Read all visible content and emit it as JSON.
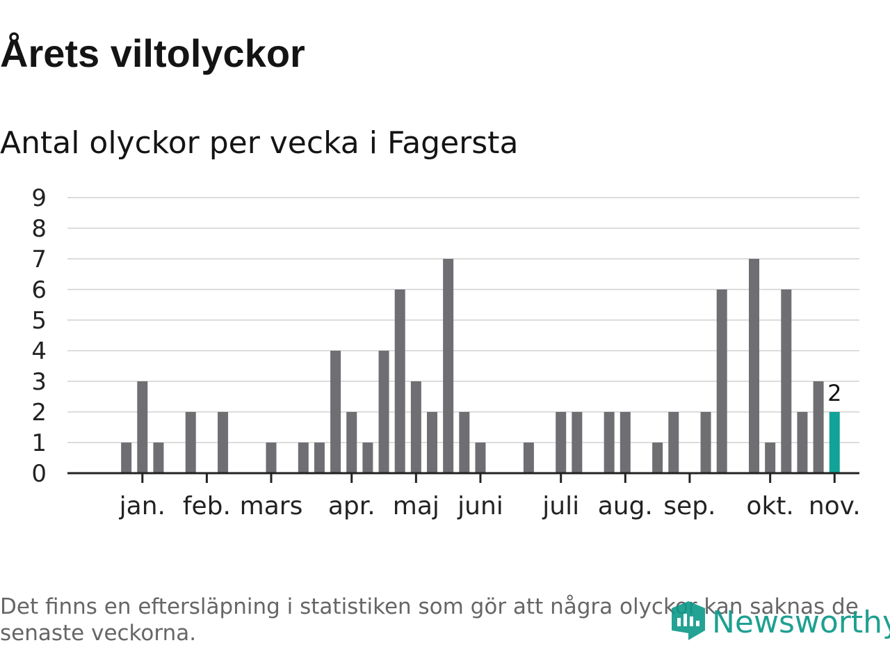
{
  "title": "Årets viltolyckor",
  "subtitle": "Antal olyckor per vecka i Fagersta",
  "footnote": "Det finns en eftersläpning i statistiken som gör att några olyckor kan saknas de senaste veckorna.",
  "brand": {
    "name": "Newsworthy"
  },
  "colors": {
    "bar": "#6f6e73",
    "highlight": "#12a398",
    "grid": "#dcdcdc",
    "axis": "#222222",
    "text": "#141414"
  },
  "chart_data": {
    "type": "bar",
    "title": "Antal olyckor per vecka i Fagersta",
    "xlabel": "",
    "ylabel": "",
    "ylim": [
      0,
      9
    ],
    "yticks": [
      0,
      1,
      2,
      3,
      4,
      5,
      6,
      7,
      8,
      9
    ],
    "grid": true,
    "weeks": [
      1,
      2,
      3,
      4,
      5,
      6,
      7,
      8,
      9,
      10,
      11,
      12,
      13,
      14,
      15,
      16,
      17,
      18,
      19,
      20,
      21,
      22,
      23,
      24,
      25,
      26,
      27,
      28,
      29,
      30,
      31,
      32,
      33,
      34,
      35,
      36,
      37,
      38,
      39,
      40,
      41,
      42,
      43,
      44,
      45,
      46
    ],
    "values": [
      0,
      1,
      3,
      1,
      0,
      2,
      0,
      2,
      0,
      0,
      1,
      0,
      1,
      1,
      4,
      2,
      1,
      4,
      6,
      3,
      2,
      7,
      2,
      1,
      0,
      0,
      1,
      0,
      2,
      2,
      0,
      2,
      2,
      0,
      1,
      2,
      0,
      2,
      6,
      0,
      7,
      1,
      6,
      2,
      3,
      2
    ],
    "highlight_week": 46,
    "highlight_label": "2",
    "month_ticks": [
      {
        "label": "jan.",
        "week": 3
      },
      {
        "label": "feb.",
        "week": 7
      },
      {
        "label": "mars",
        "week": 11
      },
      {
        "label": "apr.",
        "week": 16
      },
      {
        "label": "maj",
        "week": 20
      },
      {
        "label": "juni",
        "week": 24
      },
      {
        "label": "juli",
        "week": 29
      },
      {
        "label": "aug.",
        "week": 33
      },
      {
        "label": "sep.",
        "week": 37
      },
      {
        "label": "okt.",
        "week": 42
      },
      {
        "label": "nov.",
        "week": 46
      }
    ]
  }
}
